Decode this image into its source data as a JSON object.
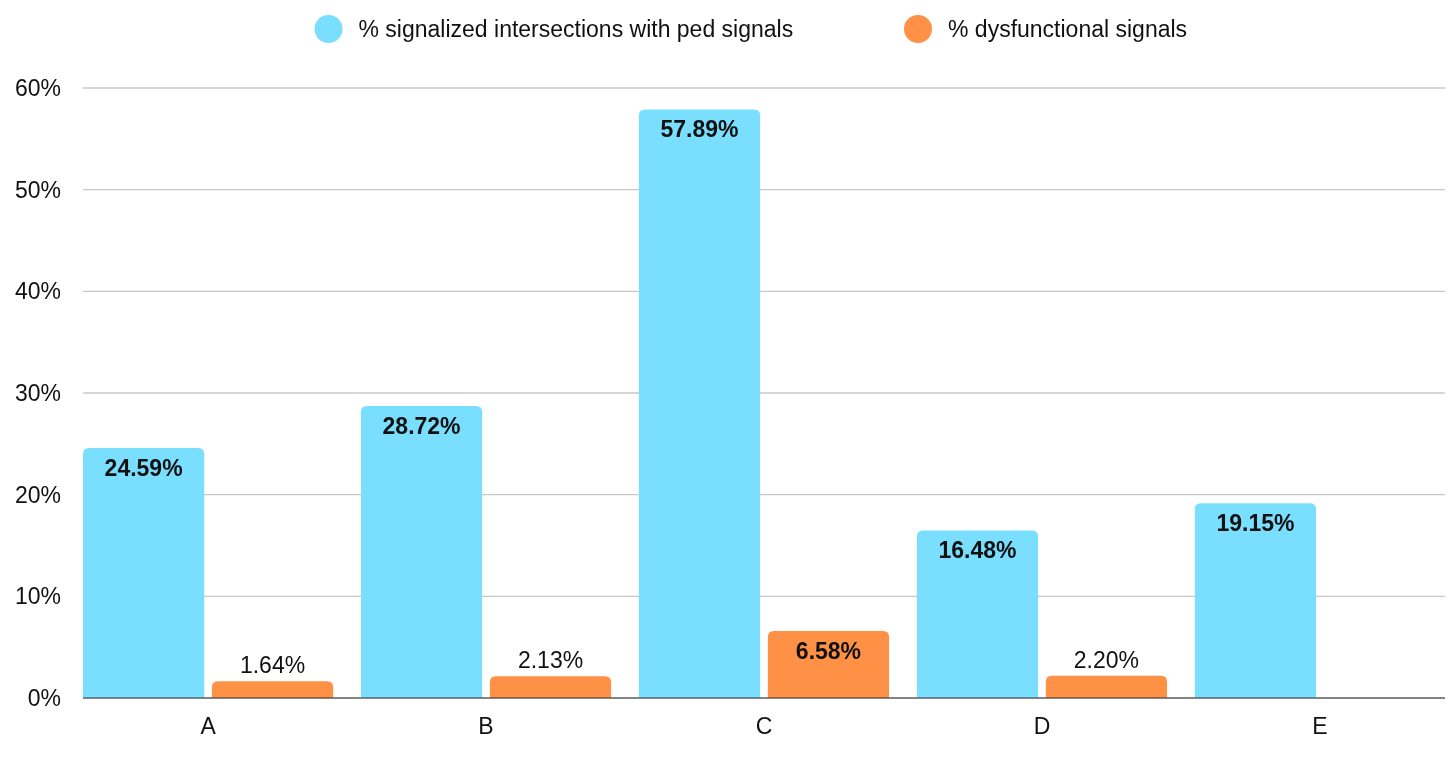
{
  "chart_data": {
    "type": "bar",
    "categories": [
      "A",
      "B",
      "C",
      "D",
      "E"
    ],
    "series": [
      {
        "name": "% signalized intersections with ped signals",
        "color": "#7adfff",
        "values": [
          24.59,
          28.72,
          57.89,
          16.48,
          19.15
        ],
        "value_labels": [
          "24.59%",
          "28.72%",
          "57.89%",
          "16.48%",
          "19.15%"
        ]
      },
      {
        "name": "% dysfunctional signals",
        "color": "#ff9147",
        "values": [
          1.64,
          2.13,
          6.58,
          2.2,
          null
        ],
        "value_labels": [
          "1.64%",
          "2.13%",
          "6.58%",
          "2.20%",
          null
        ]
      }
    ],
    "ylim": [
      0,
      60
    ],
    "yticks": [
      {
        "value": 0,
        "label": "0%"
      },
      {
        "value": 10,
        "label": "10%"
      },
      {
        "value": 20,
        "label": "20%"
      },
      {
        "value": 30,
        "label": "30%"
      },
      {
        "value": 40,
        "label": "40%"
      },
      {
        "value": 50,
        "label": "50%"
      },
      {
        "value": 60,
        "label": "60%"
      }
    ],
    "grid": "y",
    "legend": "top"
  }
}
